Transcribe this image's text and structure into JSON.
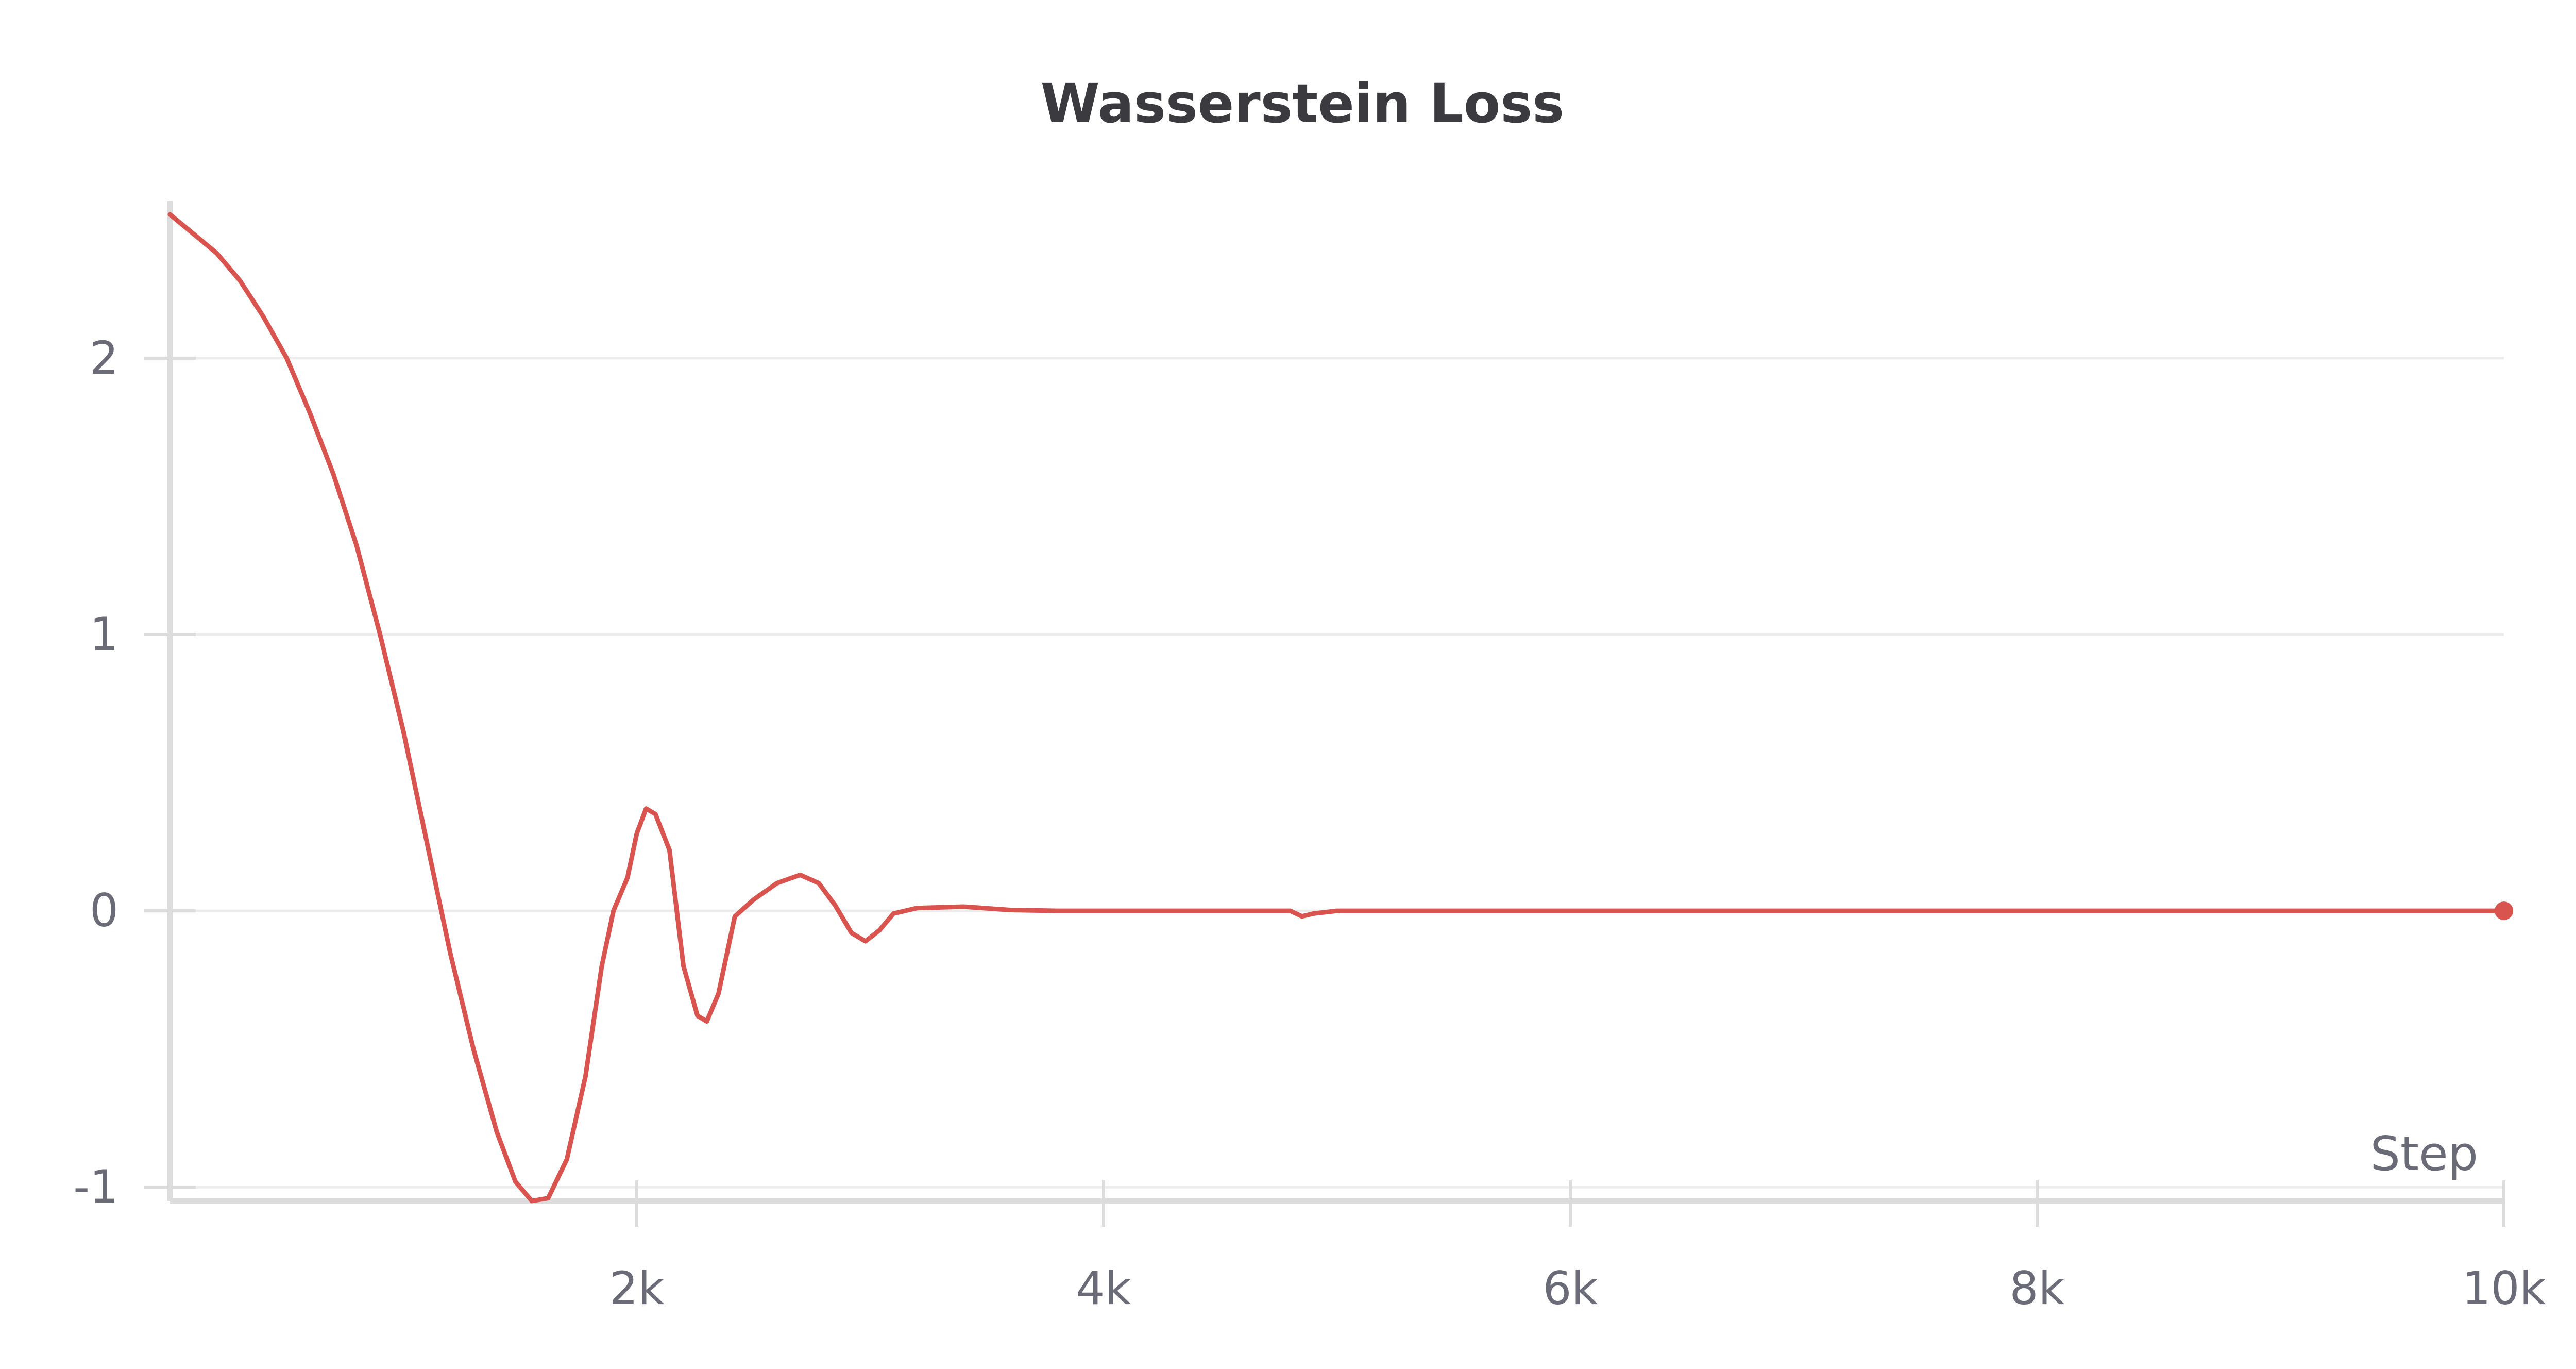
{
  "chart_data": {
    "type": "line",
    "title": "Wasserstein Loss",
    "xlabel": "Step",
    "ylabel": "",
    "xlim": [
      0,
      10000
    ],
    "ylim": [
      -1.05,
      2.55
    ],
    "xticks": [
      {
        "value": 2000,
        "label": "2k"
      },
      {
        "value": 4000,
        "label": "4k"
      },
      {
        "value": 6000,
        "label": "6k"
      },
      {
        "value": 8000,
        "label": "8k"
      },
      {
        "value": 10000,
        "label": "10k"
      }
    ],
    "yticks": [
      {
        "value": -1,
        "label": "-1"
      },
      {
        "value": 0,
        "label": "0"
      },
      {
        "value": 1,
        "label": "1"
      },
      {
        "value": 2,
        "label": "2"
      }
    ],
    "grid": true,
    "colors": {
      "series": "#d9534f",
      "grid": "#ececec",
      "axis": "#dcdcdc",
      "text": "#6b6b78",
      "title": "#3b3b3f"
    },
    "series": [
      {
        "values": [
          [
            0,
            2.52
          ],
          [
            100,
            2.45
          ],
          [
            200,
            2.38
          ],
          [
            300,
            2.28
          ],
          [
            400,
            2.15
          ],
          [
            500,
            2.0
          ],
          [
            600,
            1.8
          ],
          [
            700,
            1.58
          ],
          [
            800,
            1.32
          ],
          [
            900,
            1.0
          ],
          [
            1000,
            0.65
          ],
          [
            1100,
            0.25
          ],
          [
            1200,
            -0.15
          ],
          [
            1300,
            -0.5
          ],
          [
            1400,
            -0.8
          ],
          [
            1480,
            -0.98
          ],
          [
            1550,
            -1.05
          ],
          [
            1620,
            -1.04
          ],
          [
            1700,
            -0.9
          ],
          [
            1780,
            -0.6
          ],
          [
            1850,
            -0.2
          ],
          [
            1900,
            0.0
          ],
          [
            1960,
            0.12
          ],
          [
            2000,
            0.28
          ],
          [
            2040,
            0.37
          ],
          [
            2080,
            0.35
          ],
          [
            2140,
            0.22
          ],
          [
            2200,
            -0.2
          ],
          [
            2260,
            -0.38
          ],
          [
            2300,
            -0.4
          ],
          [
            2350,
            -0.3
          ],
          [
            2420,
            -0.02
          ],
          [
            2500,
            0.04
          ],
          [
            2600,
            0.1
          ],
          [
            2700,
            0.13
          ],
          [
            2780,
            0.1
          ],
          [
            2850,
            0.02
          ],
          [
            2920,
            -0.08
          ],
          [
            2980,
            -0.11
          ],
          [
            3040,
            -0.07
          ],
          [
            3100,
            -0.01
          ],
          [
            3200,
            0.01
          ],
          [
            3400,
            0.015
          ],
          [
            3600,
            0.003
          ],
          [
            3800,
            0.0
          ],
          [
            4800,
            0.0
          ],
          [
            4850,
            -0.02
          ],
          [
            4900,
            -0.01
          ],
          [
            5000,
            0.0
          ],
          [
            10000,
            0.0
          ]
        ]
      }
    ]
  }
}
